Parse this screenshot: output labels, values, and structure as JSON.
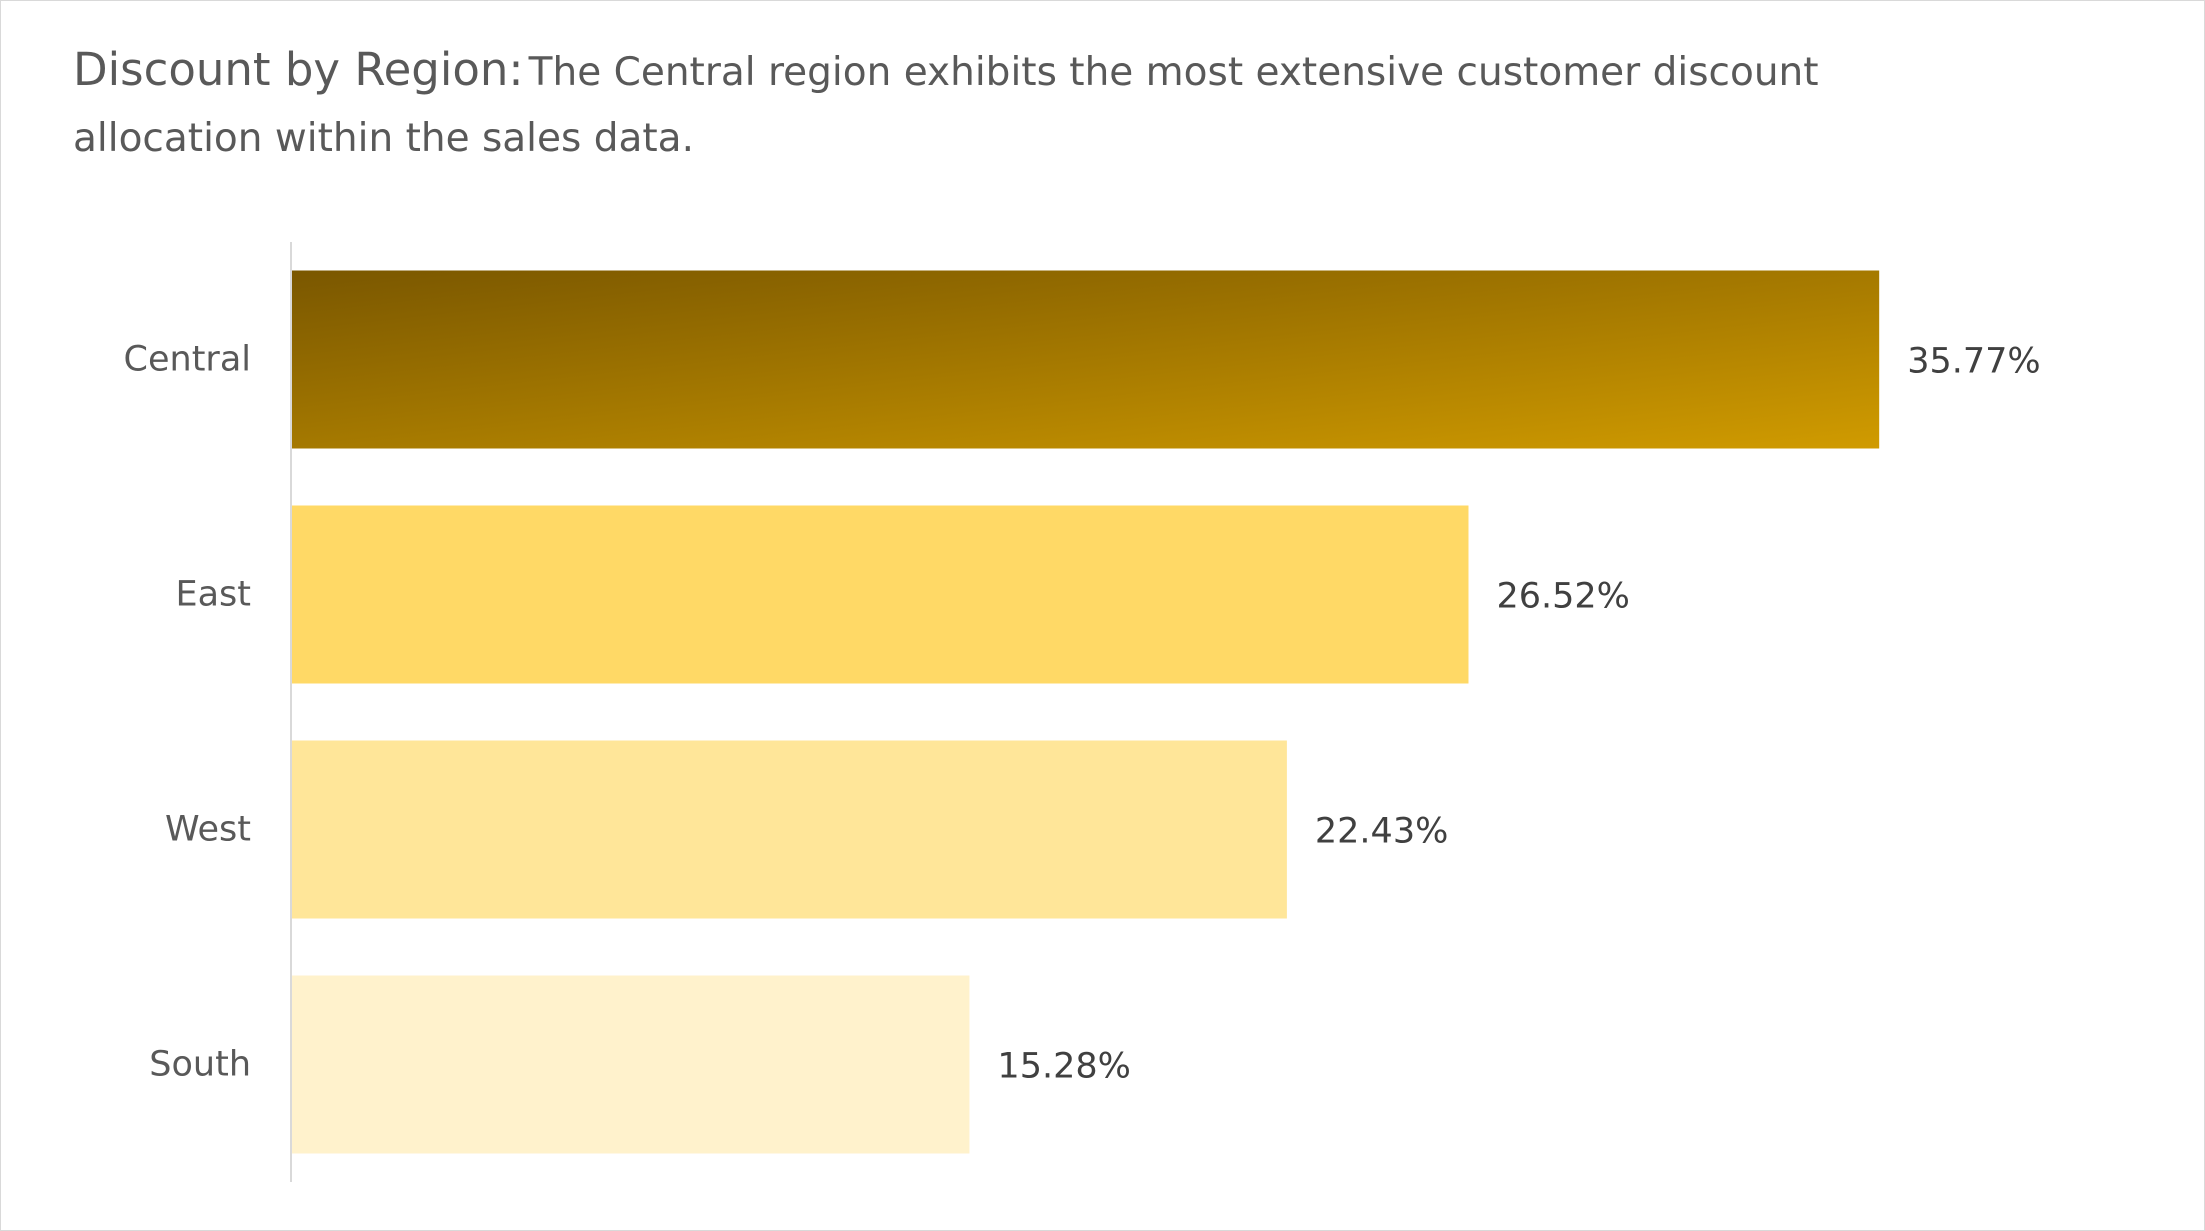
{
  "title": "Discount by Region:",
  "subtitle": "The Central region exhibits the most extensive customer discount allocation within the sales data.",
  "chart_data": {
    "type": "bar",
    "orientation": "horizontal",
    "categories": [
      "Central",
      "East",
      "West",
      "South"
    ],
    "values": [
      35.77,
      26.52,
      22.43,
      15.28
    ],
    "value_labels": [
      "35.77%",
      "26.52%",
      "22.43%",
      "15.28%"
    ],
    "unit": "%",
    "xlim": [
      0,
      40
    ],
    "grid": false,
    "legend": "none",
    "colors": {
      "Central": [
        "#7a5700",
        "#d09b00"
      ],
      "East": "#ffd966",
      "West": "#ffe699",
      "South": "#fff2cc"
    },
    "axis_color": "#d9d9d9"
  }
}
